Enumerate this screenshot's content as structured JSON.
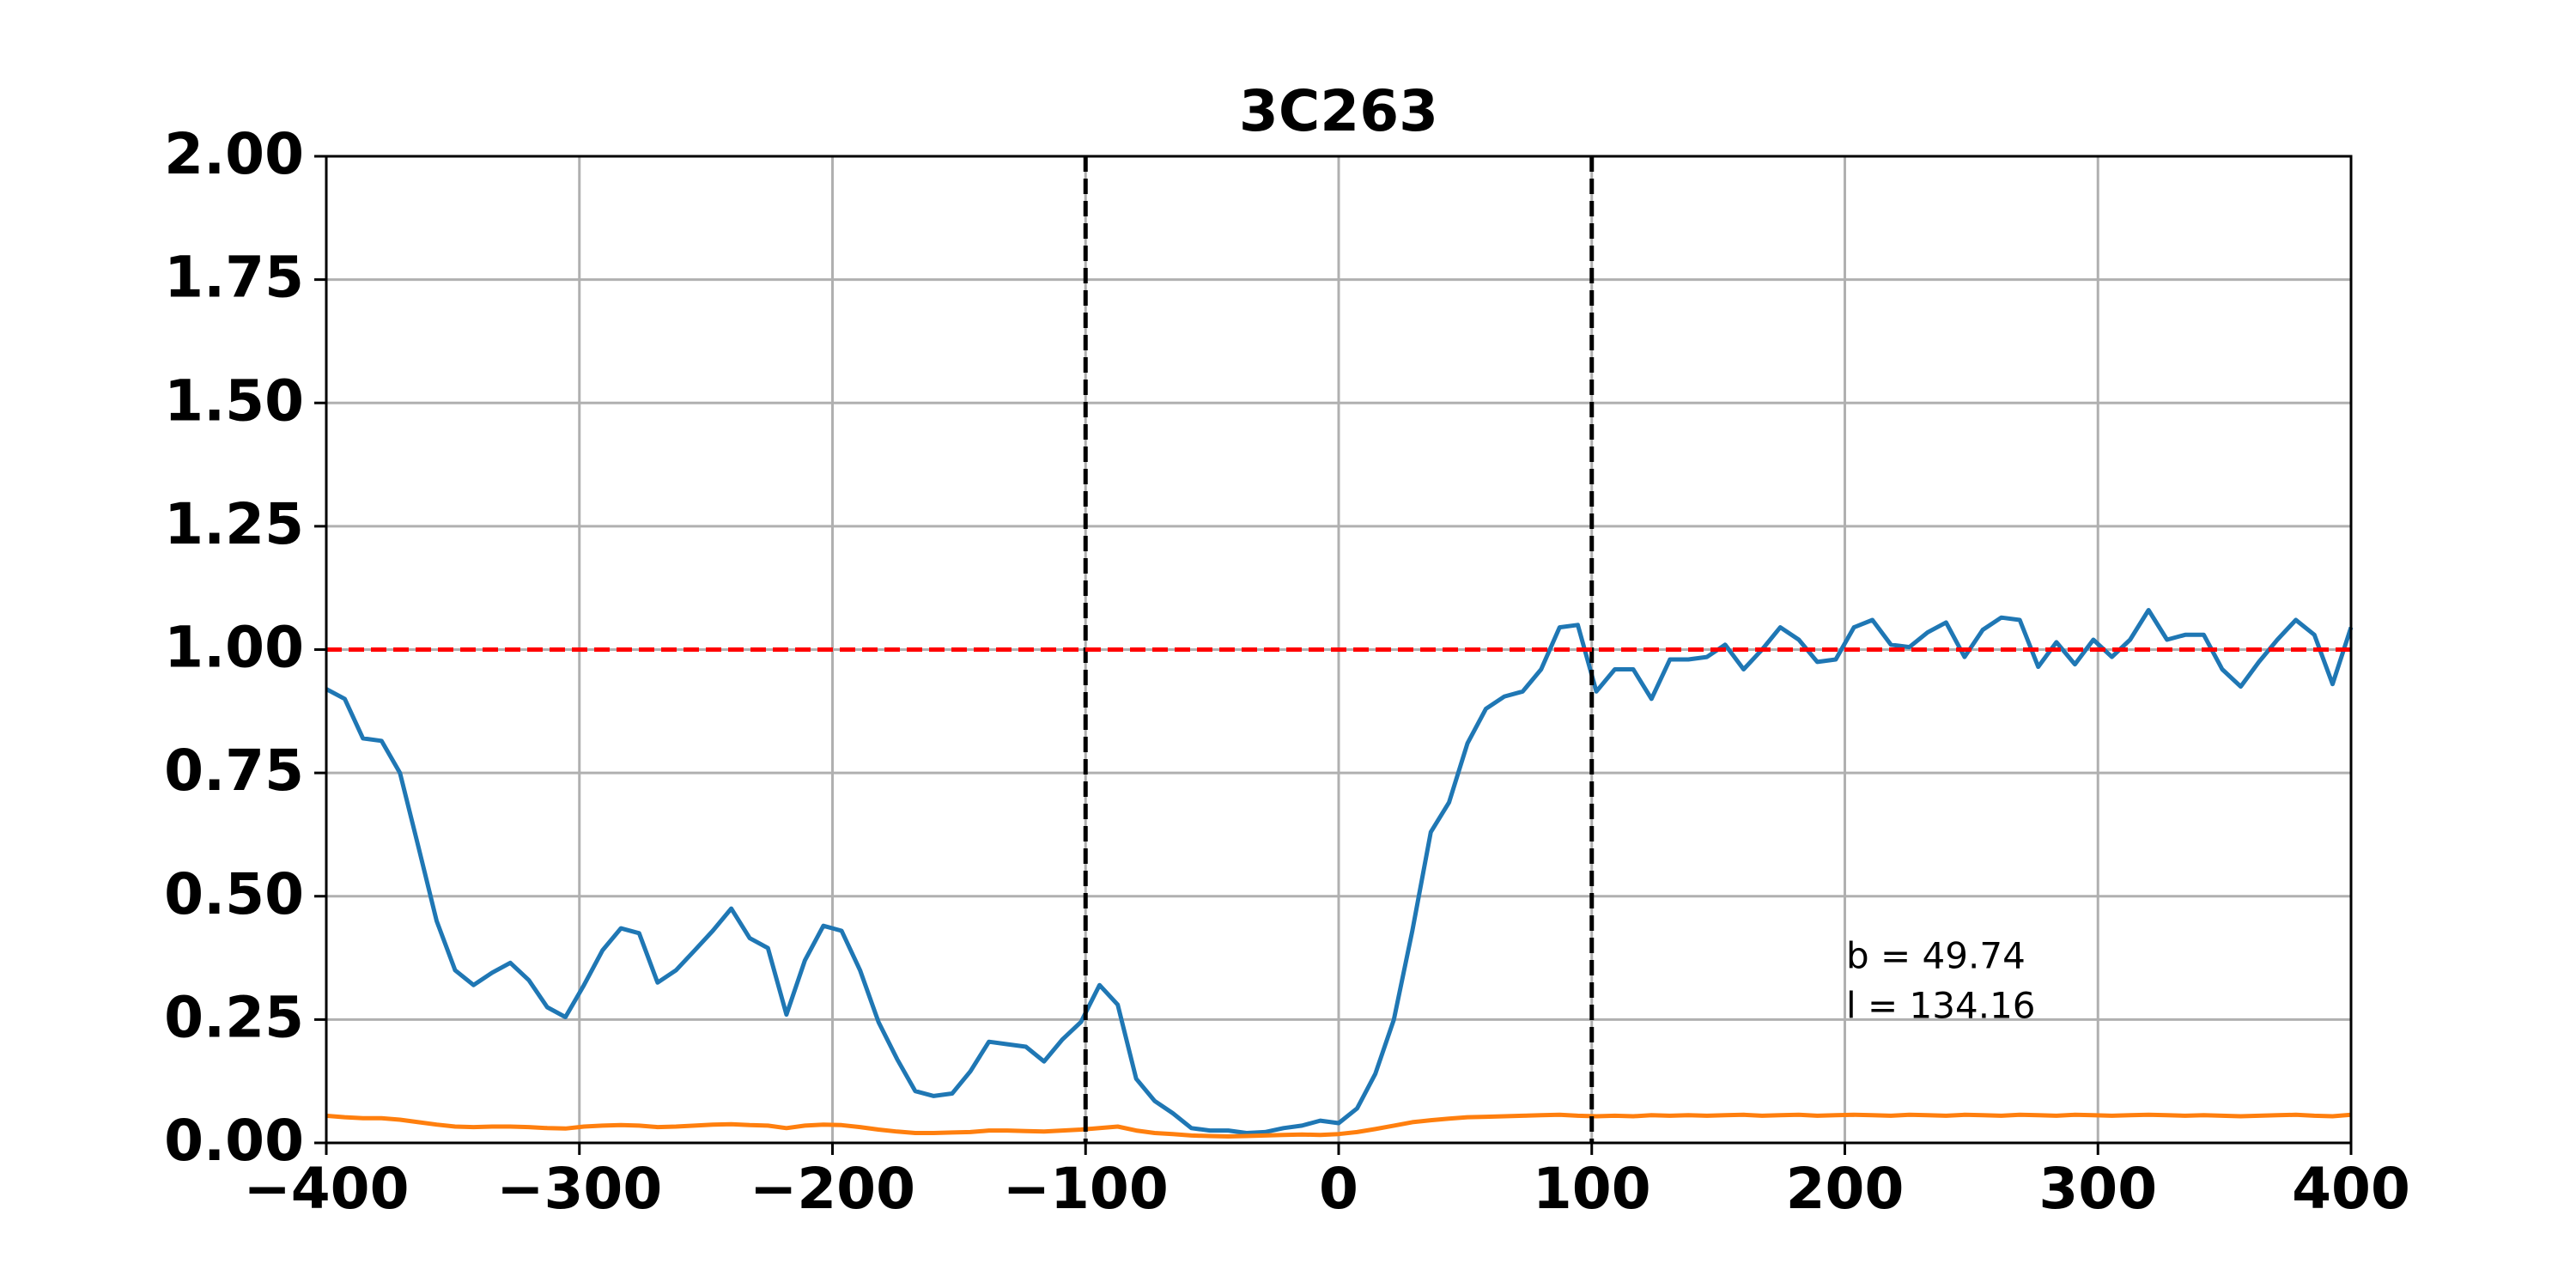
{
  "chart_data": {
    "type": "line",
    "title": "3C263",
    "x": [
      -400,
      -392.7,
      -385.5,
      -378.2,
      -370.9,
      -363.6,
      -356.4,
      -349.1,
      -341.8,
      -334.5,
      -327.3,
      -320,
      -312.7,
      -305.5,
      -298.2,
      -290.9,
      -283.6,
      -276.4,
      -269.1,
      -261.8,
      -254.5,
      -247.3,
      -240,
      -232.7,
      -225.5,
      -218.2,
      -210.9,
      -203.6,
      -196.4,
      -189.1,
      -181.8,
      -174.5,
      -167.3,
      -160,
      -152.7,
      -145.5,
      -138.2,
      -130.9,
      -123.6,
      -116.4,
      -109.1,
      -101.8,
      -94.5,
      -87.3,
      -80,
      -72.7,
      -65.5,
      -58.2,
      -50.9,
      -43.6,
      -36.4,
      -29.1,
      -21.8,
      -14.5,
      -7.3,
      0,
      7.3,
      14.5,
      21.8,
      29.1,
      36.4,
      43.6,
      50.9,
      58.2,
      65.5,
      72.7,
      80,
      87.3,
      94.5,
      101.8,
      109.1,
      116.4,
      123.6,
      130.9,
      138.2,
      145.5,
      152.7,
      160,
      167.3,
      174.5,
      181.8,
      189.1,
      196.4,
      203.6,
      210.9,
      218.2,
      225.5,
      232.7,
      240,
      247.3,
      254.5,
      261.8,
      269.1,
      276.4,
      283.6,
      290.9,
      298.2,
      305.5,
      312.7,
      320,
      327.3,
      334.5,
      341.8,
      349.1,
      356.4,
      363.6,
      370.9,
      378.2,
      385.5,
      392.7,
      400
    ],
    "series": [
      {
        "color": "#1f77b4",
        "values": [
          0.92,
          0.9,
          0.82,
          0.815,
          0.75,
          0.6,
          0.45,
          0.35,
          0.32,
          0.345,
          0.365,
          0.33,
          0.275,
          0.255,
          0.32,
          0.39,
          0.435,
          0.425,
          0.325,
          0.35,
          0.39,
          0.43,
          0.475,
          0.415,
          0.395,
          0.26,
          0.37,
          0.44,
          0.43,
          0.35,
          0.245,
          0.17,
          0.105,
          0.095,
          0.1,
          0.145,
          0.205,
          0.2,
          0.195,
          0.165,
          0.21,
          0.245,
          0.32,
          0.28,
          0.13,
          0.085,
          0.06,
          0.03,
          0.025,
          0.025,
          0.02,
          0.022,
          0.03,
          0.035,
          0.045,
          0.04,
          0.07,
          0.14,
          0.25,
          0.43,
          0.63,
          0.69,
          0.81,
          0.88,
          0.905,
          0.915,
          0.96,
          1.045,
          1.05,
          0.915,
          0.96,
          0.96,
          0.9,
          0.98,
          0.98,
          0.985,
          1.01,
          0.96,
          1.0,
          1.045,
          1.02,
          0.975,
          0.98,
          1.045,
          1.06,
          1.01,
          1.005,
          1.035,
          1.055,
          0.985,
          1.04,
          1.065,
          1.06,
          0.965,
          1.015,
          0.97,
          1.02,
          0.985,
          1.02,
          1.08,
          1.02,
          1.03,
          1.03,
          0.96,
          0.925,
          0.975,
          1.02,
          1.06,
          1.03,
          0.93,
          1.045
        ]
      },
      {
        "color": "#ff7f0e",
        "values": [
          0.055,
          0.052,
          0.05,
          0.05,
          0.047,
          0.042,
          0.037,
          0.033,
          0.032,
          0.033,
          0.033,
          0.032,
          0.03,
          0.029,
          0.033,
          0.035,
          0.036,
          0.035,
          0.032,
          0.033,
          0.035,
          0.037,
          0.038,
          0.036,
          0.035,
          0.03,
          0.035,
          0.037,
          0.036,
          0.032,
          0.027,
          0.023,
          0.02,
          0.02,
          0.021,
          0.022,
          0.025,
          0.025,
          0.024,
          0.023,
          0.025,
          0.027,
          0.03,
          0.033,
          0.025,
          0.02,
          0.018,
          0.015,
          0.014,
          0.013,
          0.014,
          0.015,
          0.016,
          0.017,
          0.016,
          0.018,
          0.022,
          0.028,
          0.035,
          0.042,
          0.046,
          0.049,
          0.052,
          0.053,
          0.054,
          0.055,
          0.056,
          0.057,
          0.055,
          0.054,
          0.055,
          0.054,
          0.056,
          0.055,
          0.056,
          0.055,
          0.056,
          0.057,
          0.055,
          0.056,
          0.057,
          0.055,
          0.056,
          0.057,
          0.056,
          0.055,
          0.057,
          0.056,
          0.055,
          0.057,
          0.056,
          0.055,
          0.057,
          0.056,
          0.055,
          0.057,
          0.056,
          0.055,
          0.056,
          0.057,
          0.056,
          0.055,
          0.056,
          0.055,
          0.054,
          0.055,
          0.056,
          0.057,
          0.055,
          0.054,
          0.057
        ]
      }
    ],
    "xlim": [
      -400,
      400
    ],
    "xticks": [
      {
        "value": -400,
        "label": "−400"
      },
      {
        "value": -300,
        "label": "−300"
      },
      {
        "value": -200,
        "label": "−200"
      },
      {
        "value": -100,
        "label": "−100"
      },
      0,
      100,
      200,
      300,
      400
    ],
    "ylim": [
      0,
      2
    ],
    "yticks": [
      {
        "value": 0,
        "label": "0.00"
      },
      {
        "value": 0.25,
        "label": "0.25"
      },
      {
        "value": 0.5,
        "label": "0.50"
      },
      {
        "value": 0.75,
        "label": "0.75"
      },
      {
        "value": 1,
        "label": "1.00"
      },
      {
        "value": 1.25,
        "label": "1.25"
      },
      {
        "value": 1.5,
        "label": "1.50"
      },
      {
        "value": 1.75,
        "label": "1.75"
      },
      {
        "value": 2,
        "label": "2.00"
      }
    ],
    "grid": true,
    "vlines": [
      -100,
      100
    ],
    "vline_color": "#000000",
    "hline": 1,
    "hline_color": "#ff0000",
    "annotations": [
      "b = 49.74",
      "l = 134.16"
    ]
  }
}
